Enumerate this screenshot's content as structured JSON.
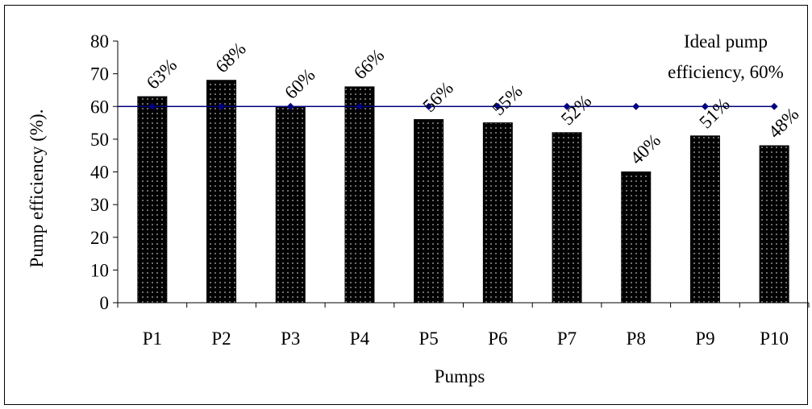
{
  "chart_data": {
    "type": "bar",
    "title": "",
    "xlabel": "Pumps",
    "ylabel": "Pump efficiency (%).",
    "ylim": [
      0,
      80
    ],
    "yticks": [
      "0",
      "10",
      "20",
      "30",
      "40",
      "50",
      "60",
      "70",
      "80"
    ],
    "grid": false,
    "categories": [
      "P1",
      "P2",
      "P3",
      "P4",
      "P5",
      "P6",
      "P7",
      "P8",
      "P9",
      "P10"
    ],
    "values": [
      63,
      68,
      60,
      66,
      56,
      55,
      52,
      40,
      51,
      48
    ],
    "data_labels": [
      "63%",
      "68%",
      "60%",
      "66%",
      "56%",
      "55%",
      "52%",
      "40%",
      "51%",
      "48%"
    ],
    "reference_line": {
      "value": 60,
      "label_line1": "Ideal pump",
      "label_line2": "efficiency, 60%"
    },
    "bar_color": "#000000",
    "bar_dot_color": "#bdbdbd",
    "line_color": "#000080",
    "marker_color": "#000080"
  }
}
